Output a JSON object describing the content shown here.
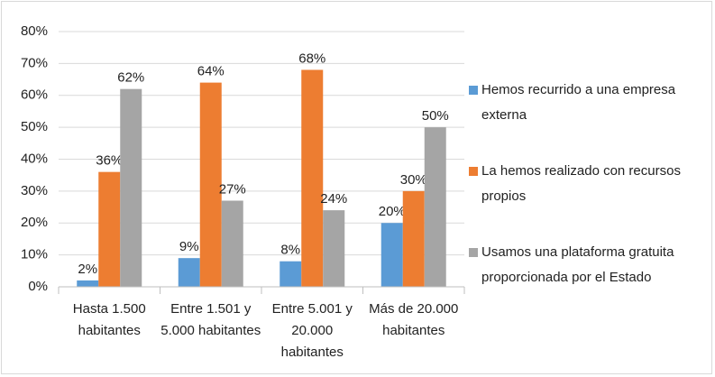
{
  "chart_data": {
    "type": "bar",
    "categories": [
      "Hasta 1.500 habitantes",
      "Entre 1.501 y 5.000 habitantes",
      "Entre 5.001 y 20.000 habitantes",
      "Más de 20.000 habitantes"
    ],
    "series": [
      {
        "name": "Hemos recurrido a una empresa externa",
        "color": "#5b9bd5",
        "values": [
          2,
          9,
          8,
          20
        ],
        "value_labels": [
          "2%",
          "9%",
          "8%",
          "20%"
        ]
      },
      {
        "name": "La hemos realizado con recursos propios",
        "color": "#ed7d31",
        "values": [
          36,
          64,
          68,
          30
        ],
        "value_labels": [
          "36%",
          "64%",
          "68%",
          "30%"
        ]
      },
      {
        "name": "Usamos una plataforma gratuita proporcionada por el Estado",
        "color": "#a5a5a5",
        "values": [
          62,
          27,
          24,
          50
        ],
        "value_labels": [
          "62%",
          "27%",
          "24%",
          "50%"
        ]
      }
    ],
    "ylim": [
      0,
      80
    ],
    "yticks": [
      {
        "value": 0,
        "label": "0%"
      },
      {
        "value": 10,
        "label": "10%"
      },
      {
        "value": 20,
        "label": "20%"
      },
      {
        "value": 30,
        "label": "30%"
      },
      {
        "value": 40,
        "label": "40%"
      },
      {
        "value": 50,
        "label": "50%"
      },
      {
        "value": 60,
        "label": "60%"
      },
      {
        "value": 70,
        "label": "70%"
      },
      {
        "value": 80,
        "label": "80%"
      }
    ],
    "grid": true,
    "legend": "right"
  }
}
